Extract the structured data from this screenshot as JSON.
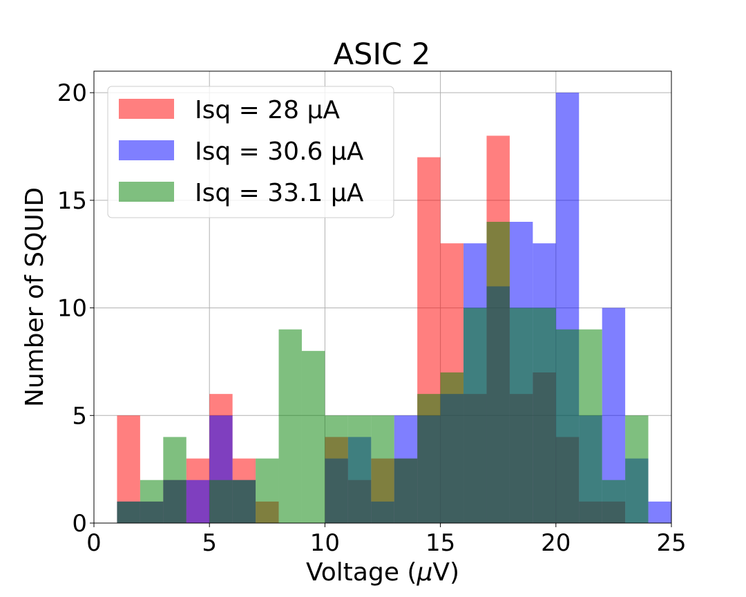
{
  "chart_data": {
    "type": "bar",
    "title": "ASIC 2",
    "xlabel": "Voltage (",
    "xlabel_mu": "μ",
    "xlabel_unit": "V)",
    "ylabel": "Number of SQUID",
    "xlim": [
      0,
      25
    ],
    "ylim": [
      0,
      21
    ],
    "grid": true,
    "legend_position": "top-left",
    "xticks": [
      0,
      5,
      10,
      15,
      20,
      25
    ],
    "yticks": [
      0,
      5,
      10,
      15,
      20
    ],
    "bin_width": 1,
    "bin_starts": [
      1,
      2,
      3,
      4,
      5,
      6,
      7,
      8,
      9,
      10,
      11,
      12,
      13,
      14,
      15,
      16,
      17,
      18,
      19,
      20,
      21,
      22,
      23,
      24
    ],
    "series": [
      {
        "name": "Isq = 28 μA",
        "color": "#ff0000",
        "values": [
          5,
          1,
          2,
          3,
          6,
          3,
          1,
          0,
          0,
          4,
          2,
          3,
          3,
          17,
          13,
          6,
          18,
          6,
          7,
          4,
          1,
          1,
          0,
          0
        ]
      },
      {
        "name": "Isq = 30.6 μA",
        "color": "#0000ff",
        "values": [
          1,
          1,
          2,
          2,
          5,
          2,
          0,
          0,
          0,
          3,
          4,
          1,
          5,
          5,
          6,
          13,
          11,
          14,
          13,
          20,
          5,
          10,
          3,
          1
        ]
      },
      {
        "name": "Isq = 33.1 μA",
        "color": "#008000",
        "values": [
          1,
          2,
          4,
          0,
          2,
          2,
          3,
          9,
          8,
          5,
          5,
          5,
          3,
          6,
          7,
          10,
          14,
          10,
          10,
          9,
          9,
          2,
          5,
          0
        ]
      }
    ],
    "alpha": 0.5
  }
}
